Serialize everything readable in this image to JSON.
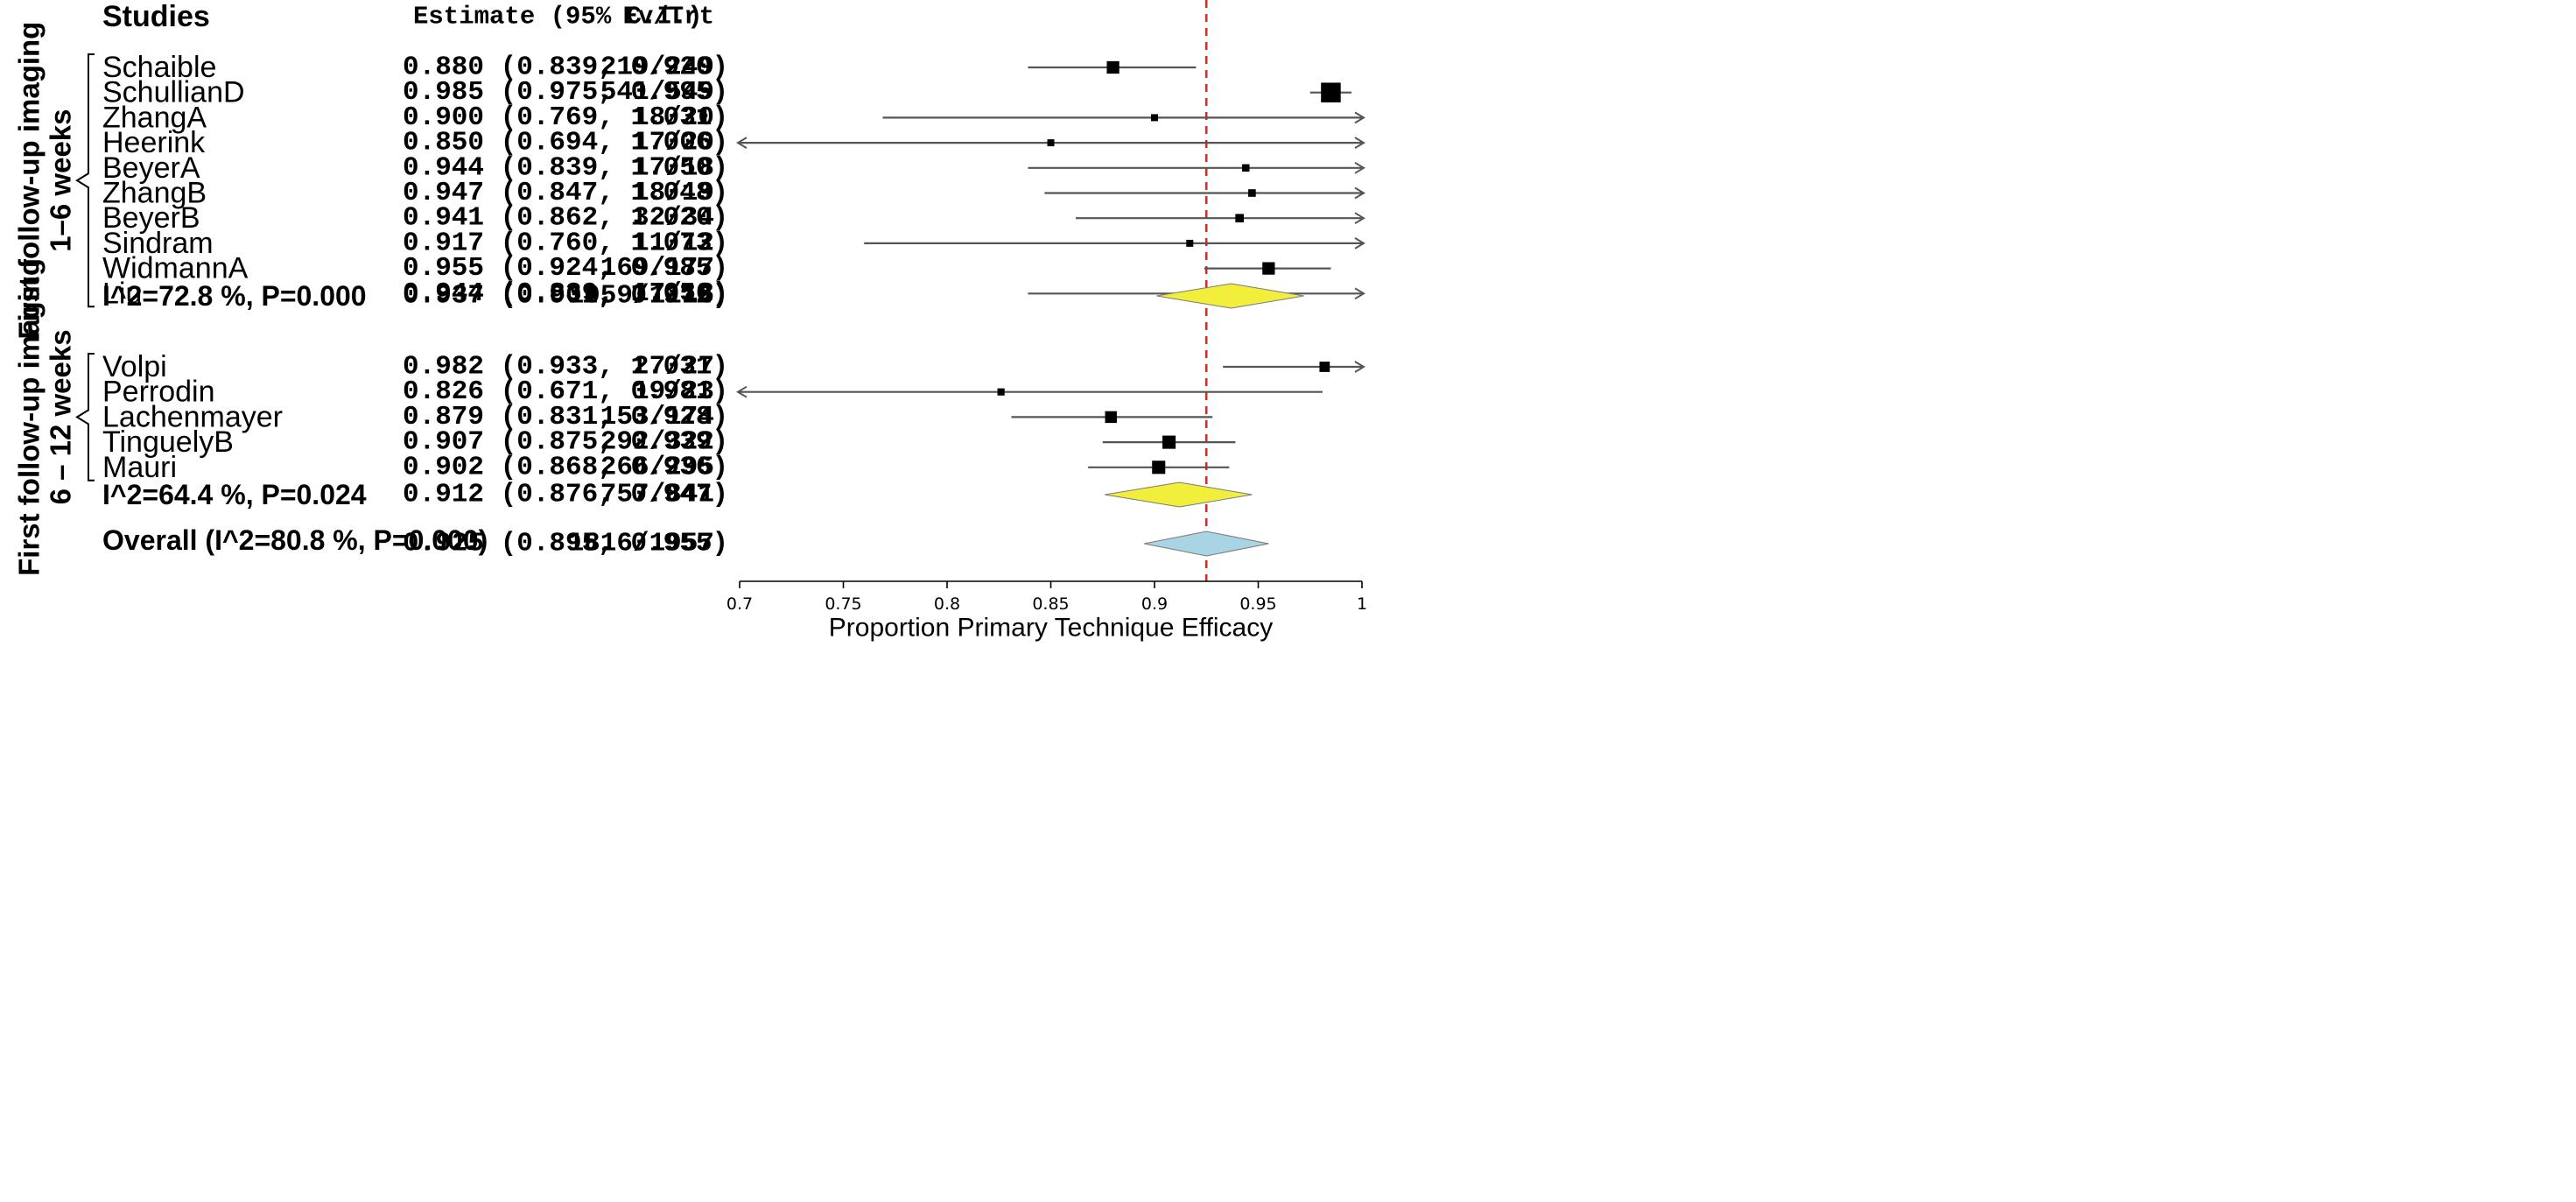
{
  "chart_data": {
    "type": "forest",
    "headers": {
      "studies": "Studies",
      "estimate": "Estimate (95% C.I.)",
      "events": "Ev/Trt"
    },
    "groups": [
      {
        "label_line1": "First follow-up imaging",
        "label_line2": "1–6 weeks",
        "studies": [
          {
            "name": "Schaible",
            "est": 0.88,
            "lo": 0.839,
            "hi": 0.92,
            "ci_text": "0.880 (0.839, 0.920)",
            "ev_trt": "219/249",
            "weight": 5
          },
          {
            "name": "SchullianD",
            "est": 0.985,
            "lo": 0.975,
            "hi": 0.995,
            "ci_text": "0.985 (0.975, 0.995)",
            "ev_trt": "541/549",
            "weight": 10
          },
          {
            "name": "ZhangA",
            "est": 0.9,
            "lo": 0.769,
            "hi": 1.031,
            "ci_text": "0.900 (0.769, 1.031)",
            "ev_trt": "18/20",
            "weight": 1.2
          },
          {
            "name": "Heerink",
            "est": 0.85,
            "lo": 0.694,
            "hi": 1.006,
            "ci_text": "0.850 (0.694, 1.006)",
            "ev_trt": "17/20",
            "weight": 1.2
          },
          {
            "name": "BeyerA",
            "est": 0.944,
            "lo": 0.839,
            "hi": 1.05,
            "ci_text": "0.944 (0.839, 1.050)",
            "ev_trt": "17/18",
            "weight": 1.5
          },
          {
            "name": "ZhangB",
            "est": 0.947,
            "lo": 0.847,
            "hi": 1.048,
            "ci_text": "0.947 (0.847, 1.048)",
            "ev_trt": "18/19",
            "weight": 1.6
          },
          {
            "name": "BeyerB",
            "est": 0.941,
            "lo": 0.862,
            "hi": 1.02,
            "ci_text": "0.941 (0.862, 1.020)",
            "ev_trt": "32/34",
            "weight": 2.2
          },
          {
            "name": "Sindram",
            "est": 0.917,
            "lo": 0.76,
            "hi": 1.073,
            "ci_text": "0.917 (0.760, 1.073)",
            "ev_trt": "11/12",
            "weight": 1.2
          },
          {
            "name": "WidmannA",
            "est": 0.955,
            "lo": 0.924,
            "hi": 0.985,
            "ci_text": "0.955 (0.924, 0.985)",
            "ev_trt": "169/177",
            "weight": 5
          },
          {
            "name": "Liu",
            "est": 0.944,
            "lo": 0.839,
            "hi": 1.05,
            "ci_text": "0.944 (0.839, 1.050)",
            "ev_trt": "17/18",
            "weight": 1.5
          }
        ],
        "summary": {
          "label": "I^2=72.8 %, P=0.000",
          "est": 0.937,
          "lo": 0.901,
          "hi": 0.972,
          "ci_text": "0.937 (0.901, 0.972)",
          "ev_trt": "1059/1116"
        }
      },
      {
        "label_line1": "First follow-up imaging",
        "label_line2": "6 – 12 weeks",
        "studies": [
          {
            "name": "Volpi",
            "est": 0.982,
            "lo": 0.933,
            "hi": 1.031,
            "ci_text": "0.982 (0.933, 1.031)",
            "ev_trt": "27/27",
            "weight": 3.5
          },
          {
            "name": "Perrodin",
            "est": 0.826,
            "lo": 0.671,
            "hi": 0.981,
            "ci_text": "0.826 (0.671, 0.981)",
            "ev_trt": "19/23",
            "weight": 1.3
          },
          {
            "name": "Lachenmayer",
            "est": 0.879,
            "lo": 0.831,
            "hi": 0.928,
            "ci_text": "0.879 (0.831, 0.928)",
            "ev_trt": "153/174",
            "weight": 4.5
          },
          {
            "name": "TinguelyB",
            "est": 0.907,
            "lo": 0.875,
            "hi": 0.939,
            "ci_text": "0.907 (0.875, 0.939)",
            "ev_trt": "292/322",
            "weight": 5.5
          },
          {
            "name": "Mauri",
            "est": 0.902,
            "lo": 0.868,
            "hi": 0.936,
            "ci_text": "0.902 (0.868, 0.936)",
            "ev_trt": "266/295",
            "weight": 5.5
          }
        ],
        "summary": {
          "label": "I^2=64.4 %, P=0.024",
          "est": 0.912,
          "lo": 0.876,
          "hi": 0.947,
          "ci_text": "0.912 (0.876, 0.947)",
          "ev_trt": "757/841"
        }
      }
    ],
    "overall": {
      "label": "Overall (I^2=80.8 %, P=0.000)",
      "est": 0.925,
      "lo": 0.895,
      "hi": 0.955,
      "ci_text": "0.925 (0.895, 0.955)",
      "ev_trt": "1816/1957"
    },
    "reference_line": 0.925,
    "xlim": [
      0.7,
      1.0
    ],
    "x_ticks": [
      0.7,
      0.75,
      0.8,
      0.85,
      0.9,
      0.95,
      1.0
    ],
    "x_tick_labels": [
      "0.7",
      "0.75",
      "0.8",
      "0.85",
      "0.9",
      "0.95",
      "1"
    ],
    "xlabel": "Proportion Primary Technique Efficacy",
    "colors": {
      "subgroup_diamond": "#f2ee3c",
      "overall_diamond": "#a9d4e3",
      "reference_line": "#e2261c",
      "ci_line": "#555555",
      "point": "#000000"
    }
  }
}
